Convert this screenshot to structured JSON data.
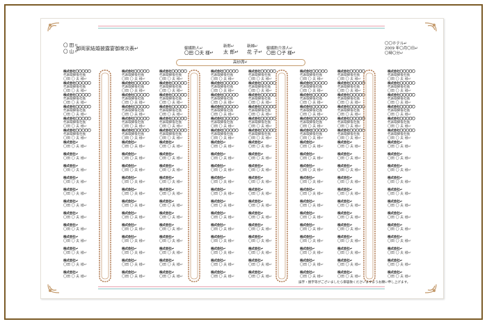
{
  "header": {
    "left_line1": "〇 田〃",
    "left_line2": "〇 山〃",
    "title": "御両家結婚披露宴御席次表↵",
    "groom_parents_label": "御媒酌人↵",
    "groom_parents_names": "〇田 〇夫 様↵",
    "groom_label": "新郎↵",
    "groom_name": "太 郎↵",
    "bride_label": "新婦↵",
    "bride_name": "花 子↵",
    "bride_parents_label": "御媒酌介添人↵",
    "bride_parents_names": "〇田 〇子 様↵",
    "venue": "〇〇ホテル↵",
    "date": "2009 年〇月〇日↵",
    "time": "〇時〇分↵",
    "head_table": "高砂席↵"
  },
  "footer_note": "誤字・脱字等がございましたら御容赦くださいますようお願い申し上げます。",
  "guest": {
    "title_line": "株式会社〇〇〇〇〇",
    "dept_line": "代表取締役社長",
    "name_line": "〇田 〇 夫 様↵",
    "short_title": "株式会社↵"
  },
  "colors": {
    "frame": "#7a5a26",
    "table_border": "#b07a52",
    "rule_pink": "#e8a0ae",
    "rule_teal": "#8ec4c4"
  },
  "layout_meta": {
    "columns": 10,
    "guests_per_column": 18,
    "long_rows": 6
  }
}
